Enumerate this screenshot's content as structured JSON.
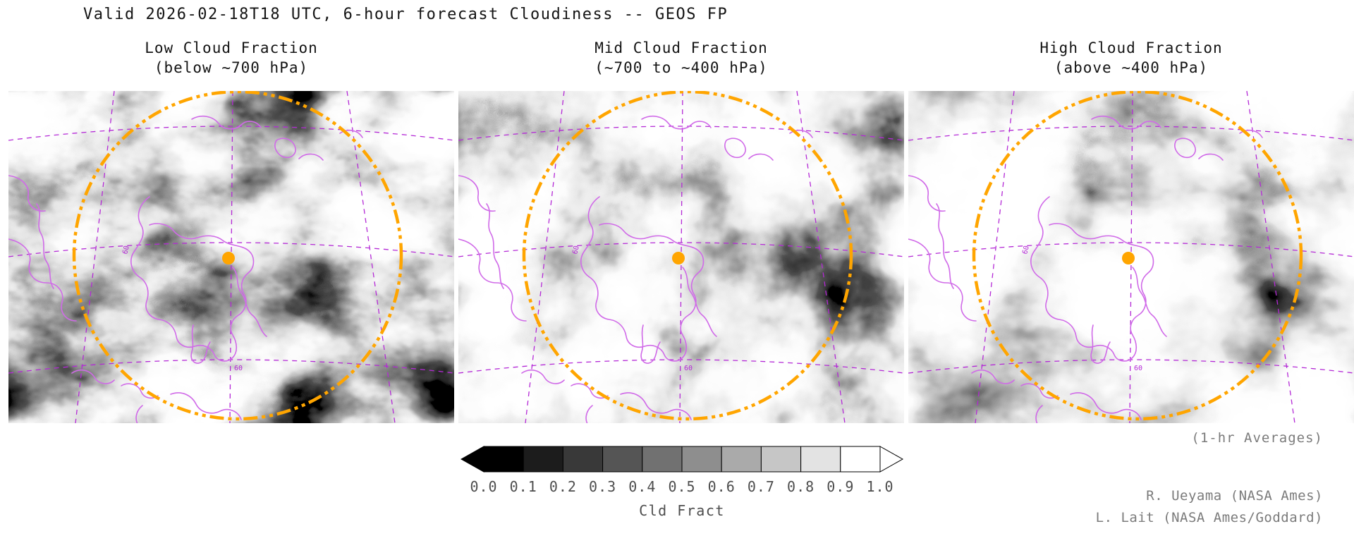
{
  "page": {
    "title": "Valid 2026-02-18T18 UTC, 6-hour forecast Cloudiness -- GEOS FP"
  },
  "panels": [
    {
      "title": "Low Cloud Fraction",
      "subtitle": "(below ~700 hPa)"
    },
    {
      "title": "Mid Cloud Fraction",
      "subtitle": "(~700 to ~400 hPa)"
    },
    {
      "title": "High Cloud Fraction",
      "subtitle": "(above ~400 hPa)"
    }
  ],
  "colorbar": {
    "label": "Cld Fract",
    "ticks": [
      "0.0",
      "0.1",
      "0.2",
      "0.3",
      "0.4",
      "0.5",
      "0.6",
      "0.7",
      "0.8",
      "0.9",
      "1.0"
    ]
  },
  "notes": {
    "averaging": "(1-hr Averages)",
    "credits": [
      "R. Ueyama (NASA Ames)",
      "L. Lait (NASA Ames/Goddard)"
    ]
  },
  "map_labels": {
    "lat60": "60"
  },
  "colors": {
    "coastline": "#d06ae8",
    "graticule": "#b429d6",
    "ring": "#ffa500",
    "marker": "#ffa500",
    "text_gray": "#7b7b7b",
    "cloud_min": "#000000",
    "cloud_max": "#ffffff"
  },
  "chart_data": {
    "type": "heatmap",
    "title": "Valid 2026-02-18T18 UTC, 6-hour forecast Cloudiness -- GEOS FP",
    "model": "GEOS FP",
    "valid_time": "2026-02-18T18 UTC",
    "forecast_hours": 6,
    "panels": [
      {
        "title": "Low Cloud Fraction",
        "level_range": "below ~700 hPa"
      },
      {
        "title": "Mid Cloud Fraction",
        "level_range": "~700 to ~400 hPa"
      },
      {
        "title": "High Cloud Fraction",
        "level_range": "above ~400 hPa"
      }
    ],
    "colorbar": {
      "label": "Cld Fract",
      "min": 0.0,
      "max": 1.0,
      "tick_values": [
        0.0,
        0.1,
        0.2,
        0.3,
        0.4,
        0.5,
        0.6,
        0.7,
        0.8,
        0.9,
        1.0
      ],
      "palette": "grayscale_black_to_white"
    },
    "overlays": {
      "coastlines": "violet solid",
      "graticule": "violet dashed, 60N labeled",
      "range_ring": "orange dash-dot circle",
      "site_marker": "orange filled dot"
    },
    "averaging": "(1-hr Averages)"
  }
}
